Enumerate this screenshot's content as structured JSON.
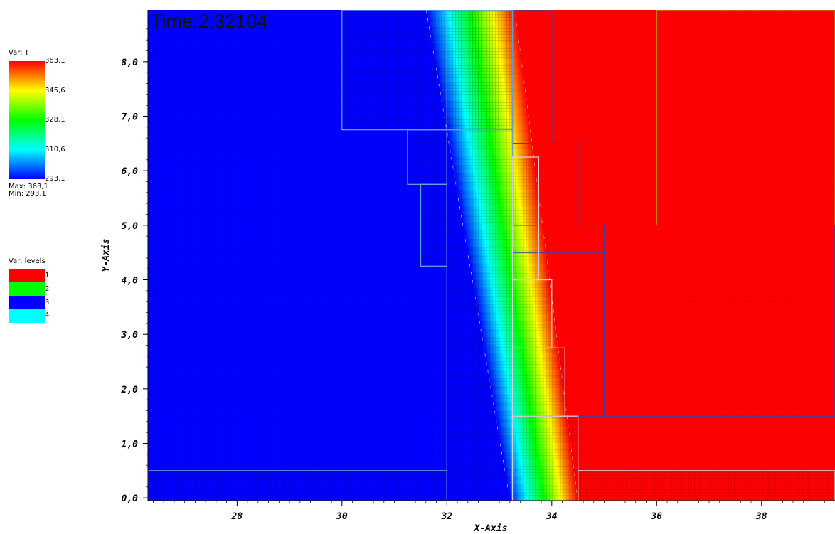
{
  "chart_data": {
    "type": "heatmap",
    "title": "Time:2,32104",
    "xlabel": "X-Axis",
    "ylabel": "Y-Axis",
    "xlim": [
      26.3,
      39.4
    ],
    "ylim": [
      -0.05,
      8.95
    ],
    "x_ticks": [
      {
        "value": 28,
        "label": "28"
      },
      {
        "value": 30,
        "label": "30"
      },
      {
        "value": 32,
        "label": "32"
      },
      {
        "value": 34,
        "label": "34"
      },
      {
        "value": 36,
        "label": "36"
      },
      {
        "value": 38,
        "label": "38"
      }
    ],
    "y_ticks": [
      {
        "value": 0,
        "label": "0,0"
      },
      {
        "value": 1,
        "label": "1,0"
      },
      {
        "value": 2,
        "label": "2,0"
      },
      {
        "value": 3,
        "label": "3,0"
      },
      {
        "value": 4,
        "label": "4,0"
      },
      {
        "value": 5,
        "label": "5,0"
      },
      {
        "value": 6,
        "label": "6,0"
      },
      {
        "value": 7,
        "label": "7,0"
      },
      {
        "value": 8,
        "label": "8,0"
      }
    ],
    "field": {
      "variable": "T",
      "min": 293.1,
      "max": 363.1,
      "front_top": {
        "x_start": 31.6,
        "x_end": 33.3,
        "y": 8.95
      },
      "front_bottom": {
        "x_start": 33.2,
        "x_end": 34.5,
        "y": 0
      }
    },
    "colorbar_T": {
      "title": "Var: T",
      "labels": [
        "363,1",
        "345,6",
        "328,1",
        "310,6",
        "293,1"
      ],
      "max_label": "Max:  363,1",
      "min_label": "Min:  293,1"
    },
    "colorbar_levels": {
      "title": "Var: levels",
      "entries": [
        {
          "label": "1",
          "color": "#ff0000"
        },
        {
          "label": "2",
          "color": "#00ff00"
        },
        {
          "label": "3",
          "color": "#0000ff"
        },
        {
          "label": "4",
          "color": "#00ffff"
        }
      ]
    },
    "patches": [
      {
        "level": 1,
        "x0": 36.0,
        "x1": 39.4,
        "y0": 5.0,
        "y1": 8.95,
        "color": "#b8860b"
      },
      {
        "level": 2,
        "x0": 33.25,
        "x1": 34.0,
        "y0": 6.5,
        "y1": 8.95,
        "color": "#4040a0"
      },
      {
        "level": 2,
        "x0": 33.25,
        "x1": 34.5,
        "y0": 5.0,
        "y1": 6.5,
        "color": "#4040a0"
      },
      {
        "level": 2,
        "x0": 33.25,
        "x1": 35.0,
        "y0": 1.5,
        "y1": 4.5,
        "color": "#4040a0"
      },
      {
        "level": 2,
        "x0": 35.0,
        "x1": 39.4,
        "y0": 1.5,
        "y1": 5.0,
        "color": "#4040a0"
      },
      {
        "level": 3,
        "x0": 30.0,
        "x1": 33.25,
        "y0": 6.75,
        "y1": 8.95,
        "color": "#60a0e0"
      },
      {
        "level": 3,
        "x0": 31.25,
        "x1": 32.0,
        "y0": 5.75,
        "y1": 6.75,
        "color": "#60a0e0"
      },
      {
        "level": 3,
        "x0": 31.5,
        "x1": 32.0,
        "y0": 4.25,
        "y1": 5.75,
        "color": "#60a0e0"
      },
      {
        "level": 3,
        "x0": 32.0,
        "x1": 33.25,
        "y0": -0.05,
        "y1": 8.95,
        "color": "#60a0e0"
      },
      {
        "level": 3,
        "x0": 26.3,
        "x1": 32.0,
        "y0": -0.05,
        "y1": 0.5,
        "color": "#60a0e0"
      },
      {
        "level": 4,
        "x0": 33.25,
        "x1": 33.75,
        "y0": 4.0,
        "y1": 6.25,
        "color": "#d0d0d0"
      },
      {
        "level": 4,
        "x0": 33.25,
        "x1": 34.0,
        "y0": 2.75,
        "y1": 4.0,
        "color": "#d0d0d0"
      },
      {
        "level": 4,
        "x0": 33.25,
        "x1": 34.25,
        "y0": 1.5,
        "y1": 2.75,
        "color": "#d0d0d0"
      },
      {
        "level": 4,
        "x0": 33.25,
        "x1": 34.5,
        "y0": -0.05,
        "y1": 1.5,
        "color": "#d0d0d0"
      },
      {
        "level": 4,
        "x0": 34.5,
        "x1": 39.4,
        "y0": -0.05,
        "y1": 0.5,
        "color": "#d0d0d0"
      }
    ]
  }
}
